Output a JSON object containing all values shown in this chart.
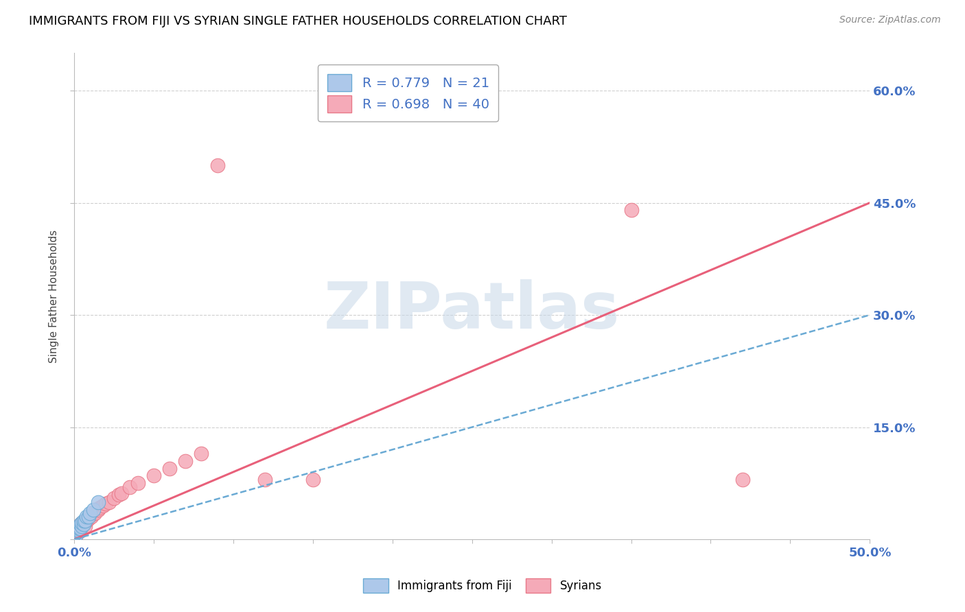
{
  "title": "IMMIGRANTS FROM FIJI VS SYRIAN SINGLE FATHER HOUSEHOLDS CORRELATION CHART",
  "source": "Source: ZipAtlas.com",
  "ylabel": "Single Father Households",
  "xlim": [
    0.0,
    0.5
  ],
  "ylim": [
    0.0,
    0.65
  ],
  "xticks": [
    0.0,
    0.05,
    0.1,
    0.15,
    0.2,
    0.25,
    0.3,
    0.35,
    0.4,
    0.45,
    0.5
  ],
  "xticklabels": [
    "0.0%",
    "",
    "",
    "",
    "",
    "",
    "",
    "",
    "",
    "",
    "50.0%"
  ],
  "yticks": [
    0.0,
    0.15,
    0.3,
    0.45,
    0.6
  ],
  "yticklabels": [
    "",
    "15.0%",
    "30.0%",
    "45.0%",
    "60.0%"
  ],
  "fiji_R": 0.779,
  "fiji_N": 21,
  "syrian_R": 0.698,
  "syrian_N": 40,
  "fiji_color": "#adc8ea",
  "syrian_color": "#f5aab8",
  "fiji_edge_color": "#6aaad4",
  "syrian_edge_color": "#e87888",
  "fiji_line_color": "#6aaad4",
  "syrian_line_color": "#e8607a",
  "fiji_x": [
    0.001,
    0.001,
    0.001,
    0.002,
    0.002,
    0.002,
    0.003,
    0.003,
    0.003,
    0.004,
    0.004,
    0.005,
    0.005,
    0.006,
    0.006,
    0.007,
    0.008,
    0.009,
    0.01,
    0.012,
    0.015
  ],
  "fiji_y": [
    0.005,
    0.008,
    0.01,
    0.01,
    0.012,
    0.015,
    0.012,
    0.015,
    0.018,
    0.015,
    0.02,
    0.018,
    0.022,
    0.02,
    0.025,
    0.025,
    0.03,
    0.03,
    0.035,
    0.04,
    0.05
  ],
  "syrian_x": [
    0.001,
    0.001,
    0.001,
    0.002,
    0.002,
    0.002,
    0.003,
    0.003,
    0.004,
    0.004,
    0.005,
    0.005,
    0.006,
    0.007,
    0.007,
    0.008,
    0.009,
    0.01,
    0.011,
    0.012,
    0.013,
    0.015,
    0.016,
    0.018,
    0.02,
    0.022,
    0.025,
    0.028,
    0.03,
    0.035,
    0.04,
    0.05,
    0.06,
    0.07,
    0.08,
    0.09,
    0.12,
    0.15,
    0.35,
    0.42
  ],
  "syrian_y": [
    0.005,
    0.008,
    0.012,
    0.01,
    0.012,
    0.015,
    0.01,
    0.018,
    0.015,
    0.02,
    0.018,
    0.022,
    0.02,
    0.018,
    0.025,
    0.025,
    0.028,
    0.03,
    0.03,
    0.035,
    0.035,
    0.04,
    0.042,
    0.045,
    0.048,
    0.05,
    0.055,
    0.06,
    0.062,
    0.07,
    0.075,
    0.085,
    0.095,
    0.105,
    0.115,
    0.5,
    0.08,
    0.08,
    0.44,
    0.08
  ],
  "syrian_line_intercept": 0.0,
  "syrian_line_slope": 0.9,
  "fiji_line_intercept": 0.0,
  "fiji_line_slope": 0.6,
  "watermark_text": "ZIPatlas",
  "background_color": "#ffffff",
  "grid_color": "#d0d0d0"
}
